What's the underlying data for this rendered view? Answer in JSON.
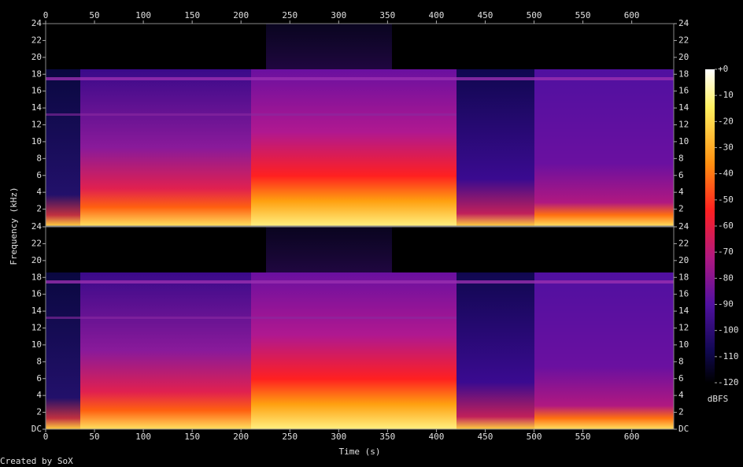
{
  "chart_data": {
    "type": "spectrogram",
    "x_label": "Time (s)",
    "y_label": "Frequency (kHz)",
    "xlim": [
      0,
      643
    ],
    "xticks": [
      0,
      50,
      100,
      150,
      200,
      250,
      300,
      350,
      400,
      450,
      500,
      550,
      600
    ],
    "channels": [
      {
        "ylim": [
          0,
          24
        ],
        "yticks": [
          2,
          4,
          6,
          8,
          10,
          12,
          14,
          16,
          18,
          20,
          22,
          24
        ]
      },
      {
        "ylim": [
          0,
          24
        ],
        "yticks": [
          {
            "value": 0,
            "label": "DC"
          },
          2,
          4,
          6,
          8,
          10,
          12,
          14,
          16,
          18,
          20,
          22,
          24
        ]
      }
    ],
    "colorbar": {
      "label": "dBFS",
      "lim": [
        -120,
        0
      ],
      "ticks": [
        {
          "value": 0,
          "label": "+0"
        },
        -10,
        -20,
        -30,
        -40,
        -50,
        -60,
        -70,
        -80,
        -90,
        -100,
        -110,
        -120
      ]
    }
  },
  "footer": "Created by SoX"
}
